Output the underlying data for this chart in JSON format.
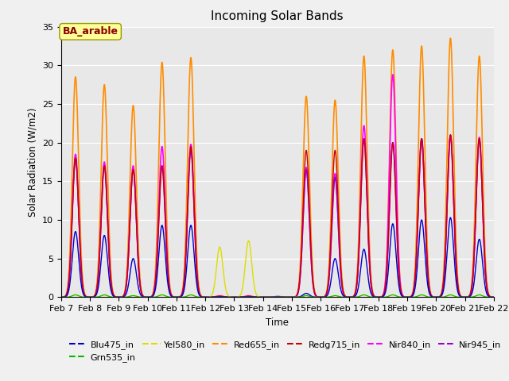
{
  "title": "Incoming Solar Bands",
  "xlabel": "Time",
  "ylabel": "Solar Radiation (W/m2)",
  "annotation": "BA_arable",
  "annotation_color": "#8B0000",
  "annotation_bg": "#FFFF99",
  "ylim": [
    0,
    35
  ],
  "legend_entries": [
    {
      "label": "Blu475_in",
      "color": "#0000CD"
    },
    {
      "label": "Grn535_in",
      "color": "#00BB00"
    },
    {
      "label": "Yel580_in",
      "color": "#DDDD00"
    },
    {
      "label": "Red655_in",
      "color": "#FF8C00"
    },
    {
      "label": "Redg715_in",
      "color": "#CC0000"
    },
    {
      "label": "Nir840_in",
      "color": "#FF00FF"
    },
    {
      "label": "Nir945_in",
      "color": "#9900CC"
    }
  ],
  "fig_bg": "#F0F0F0",
  "plot_bg": "#E8E8E8",
  "day_peaks": {
    "7": {
      "Red655": 28.5,
      "Nir840": 18.5,
      "Nir945": 18.0,
      "Redg715": 18.0,
      "Blu475": 8.5,
      "Grn535": 0.3,
      "Yel580": 0.3
    },
    "8": {
      "Red655": 27.5,
      "Nir840": 17.5,
      "Nir945": 17.0,
      "Redg715": 17.0,
      "Blu475": 8.0,
      "Grn535": 0.3,
      "Yel580": 0.3
    },
    "9": {
      "Red655": 24.8,
      "Nir840": 17.0,
      "Nir945": 16.5,
      "Redg715": 16.5,
      "Blu475": 5.0,
      "Grn535": 0.2,
      "Yel580": 0.2
    },
    "10": {
      "Red655": 30.4,
      "Nir840": 19.5,
      "Nir945": 17.0,
      "Redg715": 17.0,
      "Blu475": 9.3,
      "Grn535": 0.3,
      "Yel580": 0.3
    },
    "11": {
      "Red655": 31.0,
      "Nir840": 19.8,
      "Nir945": 19.0,
      "Redg715": 19.5,
      "Blu475": 9.3,
      "Grn535": 0.3,
      "Yel580": 0.3
    },
    "12": {
      "Red655": 0.2,
      "Nir840": 0.15,
      "Nir945": 0.1,
      "Redg715": 0.1,
      "Blu475": 0.05,
      "Grn535": 0.0,
      "Yel580": 6.5
    },
    "13": {
      "Red655": 0.2,
      "Nir840": 0.15,
      "Nir945": 0.1,
      "Redg715": 0.1,
      "Blu475": 0.05,
      "Grn535": 0.0,
      "Yel580": 7.3
    },
    "14": {
      "Red655": 0.1,
      "Nir840": 0.1,
      "Nir945": 0.05,
      "Redg715": 0.05,
      "Blu475": 0.05,
      "Grn535": 0.0,
      "Yel580": 0.05
    },
    "15": {
      "Red655": 26.0,
      "Nir840": 16.8,
      "Nir945": 16.5,
      "Redg715": 19.0,
      "Blu475": 0.5,
      "Grn535": 0.2,
      "Yel580": 0.2
    },
    "16": {
      "Red655": 25.5,
      "Nir840": 16.0,
      "Nir945": 15.5,
      "Redg715": 19.0,
      "Blu475": 5.0,
      "Grn535": 0.2,
      "Yel580": 0.2
    },
    "17": {
      "Red655": 31.2,
      "Nir840": 22.2,
      "Nir945": 20.5,
      "Redg715": 20.5,
      "Blu475": 6.2,
      "Grn535": 0.3,
      "Yel580": 0.3
    },
    "18": {
      "Red655": 32.0,
      "Nir840": 28.8,
      "Nir945": 20.0,
      "Redg715": 20.0,
      "Blu475": 9.5,
      "Grn535": 0.3,
      "Yel580": 0.3
    },
    "19": {
      "Red655": 32.5,
      "Nir840": 20.5,
      "Nir945": 20.5,
      "Redg715": 20.5,
      "Blu475": 10.0,
      "Grn535": 0.3,
      "Yel580": 0.3
    },
    "20": {
      "Red655": 33.5,
      "Nir840": 20.8,
      "Nir945": 21.0,
      "Redg715": 21.0,
      "Blu475": 10.3,
      "Grn535": 0.3,
      "Yel580": 0.3
    },
    "21": {
      "Red655": 31.2,
      "Nir840": 20.7,
      "Nir945": 20.5,
      "Redg715": 20.5,
      "Blu475": 7.5,
      "Grn535": 0.3,
      "Yel580": 0.3
    }
  }
}
